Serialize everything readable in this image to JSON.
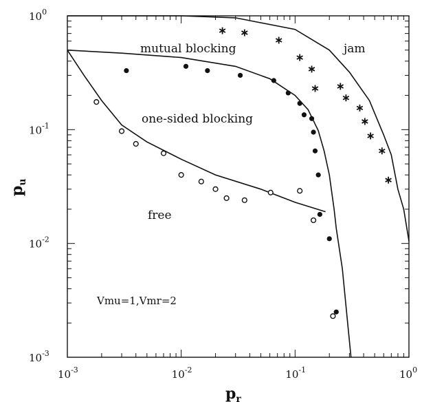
{
  "chart_data": {
    "type": "scatter",
    "title": "",
    "xlabel": "p",
    "xlabel_sub": "r",
    "ylabel": "p",
    "ylabel_sub": "u",
    "xscale": "log",
    "yscale": "log",
    "xlim": [
      0.001,
      1
    ],
    "ylim": [
      0.001,
      1
    ],
    "grid": false,
    "x_ticks": [
      {
        "base": "10",
        "exp": "-3"
      },
      {
        "base": "10",
        "exp": "-2"
      },
      {
        "base": "10",
        "exp": "-1"
      },
      {
        "base": "10",
        "exp": "0"
      }
    ],
    "y_ticks": [
      {
        "base": "10",
        "exp": "-3"
      },
      {
        "base": "10",
        "exp": "-2"
      },
      {
        "base": "10",
        "exp": "-1"
      },
      {
        "base": "10",
        "exp": "0"
      }
    ],
    "region_labels": {
      "mutual": "mutual blocking",
      "jam": "jam",
      "one_sided": "one-sided blocking",
      "free": "free"
    },
    "parameters": "Vmu=1,Vmr=2",
    "series": [
      {
        "marker": "asterisk",
        "points": [
          [
            0.023,
            0.74
          ],
          [
            0.036,
            0.71
          ],
          [
            0.072,
            0.61
          ],
          [
            0.11,
            0.43
          ],
          [
            0.14,
            0.34
          ],
          [
            0.15,
            0.23
          ],
          [
            0.25,
            0.24
          ],
          [
            0.28,
            0.19
          ],
          [
            0.37,
            0.155
          ],
          [
            0.41,
            0.118
          ],
          [
            0.46,
            0.088
          ],
          [
            0.58,
            0.065
          ],
          [
            0.66,
            0.036
          ]
        ]
      },
      {
        "marker": "filled-circle",
        "points": [
          [
            0.0033,
            0.33
          ],
          [
            0.011,
            0.36
          ],
          [
            0.017,
            0.33
          ],
          [
            0.033,
            0.3
          ],
          [
            0.065,
            0.27
          ],
          [
            0.087,
            0.21
          ],
          [
            0.11,
            0.17
          ],
          [
            0.12,
            0.135
          ],
          [
            0.14,
            0.125
          ],
          [
            0.145,
            0.095
          ],
          [
            0.15,
            0.065
          ],
          [
            0.16,
            0.04
          ],
          [
            0.165,
            0.018
          ],
          [
            0.2,
            0.011
          ],
          [
            0.23,
            0.0025
          ]
        ]
      },
      {
        "marker": "open-circle",
        "points": [
          [
            0.0018,
            0.175
          ],
          [
            0.003,
            0.097
          ],
          [
            0.004,
            0.075
          ],
          [
            0.007,
            0.062
          ],
          [
            0.01,
            0.04
          ],
          [
            0.015,
            0.035
          ],
          [
            0.02,
            0.03
          ],
          [
            0.025,
            0.025
          ],
          [
            0.036,
            0.024
          ],
          [
            0.061,
            0.028
          ],
          [
            0.11,
            0.029
          ],
          [
            0.145,
            0.016
          ],
          [
            0.215,
            0.0023
          ]
        ]
      }
    ],
    "curves": [
      {
        "name": "jam boundary",
        "points": [
          [
            0.001,
            1
          ],
          [
            0.01,
            1
          ],
          [
            0.03,
            0.96
          ],
          [
            0.1,
            0.76
          ],
          [
            0.2,
            0.5
          ],
          [
            0.3,
            0.32
          ],
          [
            0.45,
            0.18
          ],
          [
            0.6,
            0.09
          ],
          [
            0.7,
            0.06
          ],
          [
            0.8,
            0.03
          ],
          [
            0.9,
            0.02
          ],
          [
            1,
            0.0105
          ]
        ]
      },
      {
        "name": "mutual boundary",
        "points": [
          [
            0.001,
            0.5
          ],
          [
            0.003,
            0.47
          ],
          [
            0.01,
            0.43
          ],
          [
            0.03,
            0.36
          ],
          [
            0.06,
            0.28
          ],
          [
            0.1,
            0.2
          ],
          [
            0.13,
            0.15
          ],
          [
            0.16,
            0.098
          ],
          [
            0.18,
            0.065
          ],
          [
            0.2,
            0.04
          ],
          [
            0.22,
            0.02
          ],
          [
            0.23,
            0.0135
          ],
          [
            0.26,
            0.006
          ],
          [
            0.31,
            0.001
          ]
        ]
      },
      {
        "name": "free boundary",
        "points": [
          [
            0.001,
            0.5
          ],
          [
            0.0014,
            0.3
          ],
          [
            0.002,
            0.18
          ],
          [
            0.003,
            0.11
          ],
          [
            0.005,
            0.078
          ],
          [
            0.01,
            0.055
          ],
          [
            0.02,
            0.04
          ],
          [
            0.05,
            0.03
          ],
          [
            0.1,
            0.023
          ],
          [
            0.185,
            0.019
          ]
        ]
      }
    ]
  }
}
